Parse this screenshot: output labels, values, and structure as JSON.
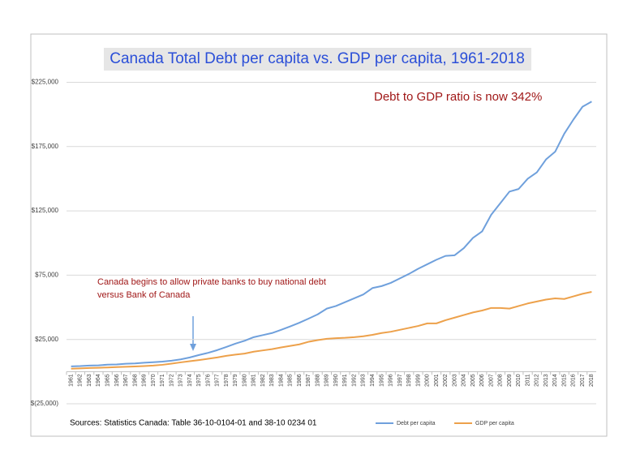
{
  "chart_data": {
    "type": "line",
    "title": "Canada Total Debt per capita vs. GDP per capita, 1961-2018",
    "annotation": "Debt to GDP ratio is now 342%",
    "note_lines": [
      "Canada begins to allow private banks to buy national debt",
      "versus Bank of Canada"
    ],
    "source": "Sources: Statistics Canada: Table 36-10-0104-01 and  38-10 0234 01",
    "categories": [
      "1961",
      "1962",
      "1963",
      "1964",
      "1965",
      "1966",
      "1967",
      "1968",
      "1969",
      "1970",
      "1971",
      "1972",
      "1973",
      "1974",
      "1975",
      "1976",
      "1977",
      "1978",
      "1979",
      "1980",
      "1981",
      "1982",
      "1983",
      "1984",
      "1985",
      "1986",
      "1987",
      "1988",
      "1989",
      "1990",
      "1991",
      "1992",
      "1993",
      "1994",
      "1995",
      "1996",
      "1997",
      "1998",
      "1999",
      "2000",
      "2001",
      "2002",
      "2003",
      "2004",
      "2005",
      "2006",
      "2007",
      "2008",
      "2009",
      "2010",
      "2011",
      "2012",
      "2013",
      "2014",
      "2015",
      "2016",
      "2017",
      "2018"
    ],
    "series": [
      {
        "name": "Debt per capita",
        "color": "#6fa0dc",
        "values": [
          4100,
          4300,
          4700,
          4900,
          5400,
          5600,
          6100,
          6400,
          6900,
          7300,
          7800,
          8500,
          9500,
          11000,
          12900,
          14600,
          16700,
          19200,
          21800,
          24000,
          26800,
          28400,
          30000,
          32500,
          35200,
          38000,
          41200,
          44500,
          49000,
          51000,
          54000,
          57000,
          60000,
          65000,
          66500,
          69000,
          72500,
          76000,
          80000,
          83500,
          87000,
          90000,
          90500,
          96000,
          104000,
          109000,
          122000,
          131000,
          140000,
          142000,
          150000,
          155000,
          165000,
          171000,
          185000,
          196000,
          206000,
          210000
        ]
      },
      {
        "name": "GDP per capita",
        "color": "#eda14b",
        "values": [
          2300,
          2500,
          2800,
          3000,
          3200,
          3500,
          3800,
          4000,
          4300,
          4700,
          5300,
          6200,
          7200,
          8100,
          9000,
          10000,
          11000,
          12300,
          13200,
          14000,
          15500,
          16500,
          17500,
          18800,
          20000,
          21200,
          23200,
          24500,
          25500,
          26000,
          26300,
          26800,
          27500,
          28600,
          30000,
          31000,
          32500,
          34000,
          35500,
          37500,
          37500,
          40000,
          42000,
          44000,
          46000,
          47500,
          49500,
          49500,
          49000,
          51000,
          53000,
          54500,
          56000,
          57000,
          56500,
          58500,
          60500,
          62000
        ]
      }
    ],
    "ylim": [
      -25000,
      225000
    ],
    "yticks": [
      {
        "value": -25000,
        "label": "$(25,000)"
      },
      {
        "value": 25000,
        "label": "$25,000"
      },
      {
        "value": 75000,
        "label": "$75,000"
      },
      {
        "value": 125000,
        "label": "$125,000"
      },
      {
        "value": 175000,
        "label": "$175,000"
      },
      {
        "value": 225000,
        "label": "$225,000"
      }
    ],
    "grid": true,
    "legend": "bottom"
  }
}
